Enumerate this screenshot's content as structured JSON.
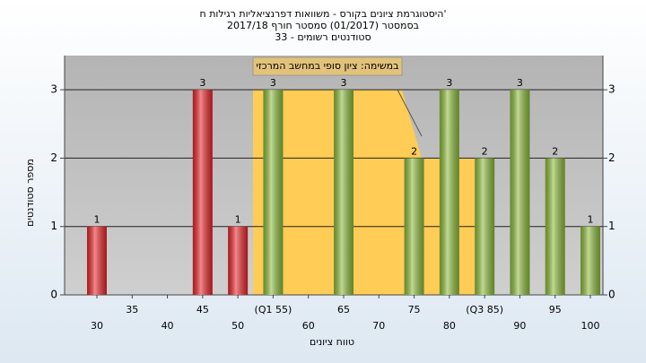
{
  "chart_data": {
    "type": "bar",
    "title": [
      "היסטוגרמת ציונים בקורס - משוואות דפרנציאליות רגילות ח'",
      "בסמסטר  (01/2017)  סמסטר חורף 2017/18",
      "33 - סטודנטים רשומים"
    ],
    "annotation": "במשימה: ציון סופי במחשב המרכזי",
    "x_label": "טווח ציונים",
    "y_label": "מספר סטודנטים",
    "categories": [
      "30",
      "35",
      "40",
      "45",
      "50",
      "(Q1 55)",
      "60",
      "65",
      "70",
      "75",
      "80",
      "(Q3 85)",
      "90",
      "95",
      "100"
    ],
    "values": [
      1,
      0,
      0,
      3,
      1,
      3,
      0,
      3,
      0,
      2,
      3,
      2,
      3,
      2,
      1
    ],
    "colors": [
      "#e8262a",
      "#e8262a",
      "#e8262a",
      "#e8262a",
      "#e8262a",
      "#8dbb3c",
      "#8dbb3c",
      "#8dbb3c",
      "#8dbb3c",
      "#8dbb3c",
      "#8dbb3c",
      "#8dbb3c",
      "#8dbb3c",
      "#8dbb3c",
      "#8dbb3c"
    ],
    "ylim": [
      0,
      3.5
    ],
    "yticks": [
      0,
      1,
      2,
      3
    ],
    "grid": true
  }
}
